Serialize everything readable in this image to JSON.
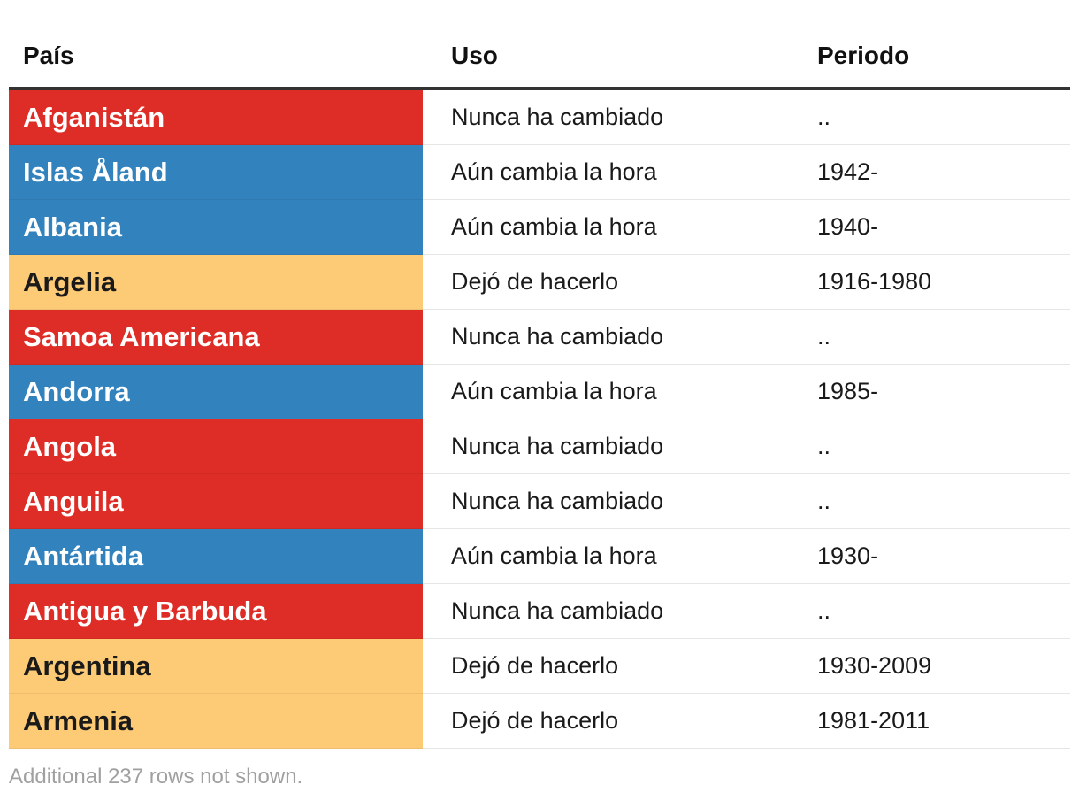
{
  "columns": [
    "País",
    "Uso",
    "Periodo"
  ],
  "colors": {
    "Nunca ha cambiado": {
      "bg": "#de2d26",
      "fg": "#ffffff"
    },
    "Aún cambia la hora": {
      "bg": "#3182bd",
      "fg": "#ffffff"
    },
    "Dejó de hacerlo": {
      "bg": "#fdca76",
      "fg": "#1a1a1a"
    }
  },
  "chart_data": {
    "type": "table",
    "columns": [
      "País",
      "Uso",
      "Periodo"
    ],
    "rows": [
      [
        "Afganistán",
        "Nunca ha cambiado",
        ".."
      ],
      [
        "Islas Åland",
        "Aún cambia la hora",
        "1942-"
      ],
      [
        "Albania",
        "Aún cambia la hora",
        "1940-"
      ],
      [
        "Argelia",
        "Dejó de hacerlo",
        "1916-1980"
      ],
      [
        "Samoa Americana",
        "Nunca ha cambiado",
        ".."
      ],
      [
        "Andorra",
        "Aún cambia la hora",
        "1985-"
      ],
      [
        "Angola",
        "Nunca ha cambiado",
        ".."
      ],
      [
        "Anguila",
        "Nunca ha cambiado",
        ".."
      ],
      [
        "Antártida",
        "Aún cambia la hora",
        "1930-"
      ],
      [
        "Antigua y Barbuda",
        "Nunca ha cambiado",
        ".."
      ],
      [
        "Argentina",
        "Dejó de hacerlo",
        "1930-2009"
      ],
      [
        "Armenia",
        "Dejó de hacerlo",
        "1981-2011"
      ]
    ]
  },
  "footnote": "Additional 237 rows not shown."
}
